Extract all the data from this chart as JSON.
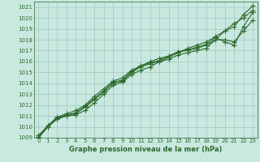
{
  "xlabel": "Graphe pression niveau de la mer (hPa)",
  "ylim": [
    1009,
    1021.5
  ],
  "xlim": [
    -0.5,
    23.5
  ],
  "yticks": [
    1009,
    1010,
    1011,
    1012,
    1013,
    1014,
    1015,
    1016,
    1017,
    1018,
    1019,
    1020,
    1021
  ],
  "xticks": [
    0,
    1,
    2,
    3,
    4,
    5,
    6,
    7,
    8,
    9,
    10,
    11,
    12,
    13,
    14,
    15,
    16,
    17,
    18,
    19,
    20,
    21,
    22,
    23
  ],
  "bg_color": "#c8e8e0",
  "line_color": "#2d6a2d",
  "grid_color": "#a0c8c0",
  "series": [
    [
      1009.2,
      1010.1,
      1010.8,
      1011.0,
      1011.1,
      1011.5,
      1012.2,
      1013.0,
      1013.8,
      1014.1,
      1014.8,
      1015.2,
      1015.5,
      1016.0,
      1016.2,
      1016.6,
      1016.8,
      1017.0,
      1017.2,
      1018.0,
      1018.8,
      1019.2,
      1020.3,
      1021.1
    ],
    [
      1009.0,
      1010.0,
      1010.7,
      1011.0,
      1011.2,
      1011.8,
      1012.5,
      1013.2,
      1014.0,
      1014.2,
      1015.0,
      1015.5,
      1015.8,
      1016.0,
      1016.4,
      1016.8,
      1017.2,
      1017.5,
      1017.8,
      1018.3,
      1018.8,
      1019.5,
      1020.0,
      1020.7
    ],
    [
      1009.0,
      1010.0,
      1010.8,
      1011.1,
      1011.3,
      1011.9,
      1012.6,
      1013.3,
      1014.1,
      1014.3,
      1015.1,
      1015.6,
      1015.9,
      1016.1,
      1016.5,
      1016.9,
      1017.1,
      1017.3,
      1017.6,
      1018.2,
      1017.8,
      1017.5,
      1019.2,
      1020.5
    ],
    [
      1009.1,
      1010.1,
      1010.9,
      1011.2,
      1011.5,
      1012.0,
      1012.8,
      1013.5,
      1014.2,
      1014.5,
      1015.2,
      1015.6,
      1016.0,
      1016.3,
      1016.5,
      1016.9,
      1017.0,
      1017.2,
      1017.5,
      1018.0,
      1018.0,
      1017.8,
      1018.8,
      1019.8
    ]
  ],
  "marker": "+",
  "markersize": 4,
  "linewidth": 0.8,
  "tick_fontsize": 5.0,
  "label_fontsize": 6.0
}
